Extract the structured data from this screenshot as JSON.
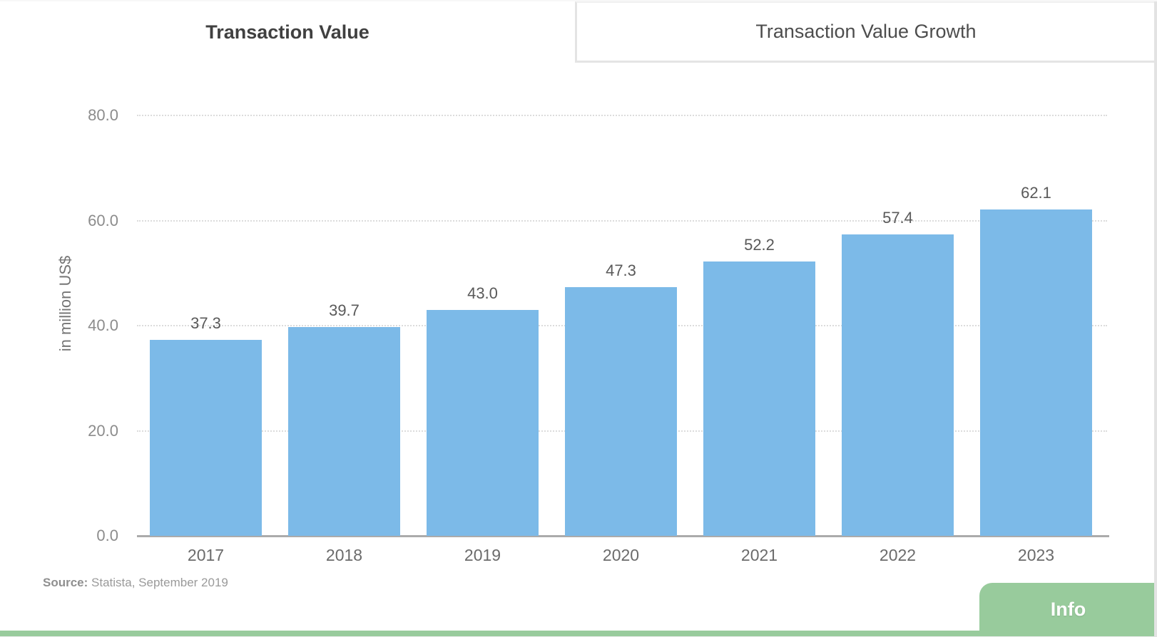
{
  "colors": {
    "bar": "#7cbae8",
    "green": "#98cb9c",
    "axis": "#ababab",
    "grid": "#dcdcdc",
    "tab_border": "#e4e4e4"
  },
  "tabs": [
    {
      "label": "Transaction Value",
      "active": true
    },
    {
      "label": "Transaction Value Growth",
      "active": false
    }
  ],
  "chart_data": {
    "type": "bar",
    "title": "Transaction Value",
    "categories": [
      "2017",
      "2018",
      "2019",
      "2020",
      "2021",
      "2022",
      "2023"
    ],
    "values": [
      37.3,
      39.7,
      43.0,
      47.3,
      52.2,
      57.4,
      62.1
    ],
    "value_labels": [
      "37.3",
      "39.7",
      "43.0",
      "47.3",
      "52.2",
      "57.4",
      "62.1"
    ],
    "xlabel": "",
    "ylabel": "in million US$",
    "ylim": [
      0,
      80
    ],
    "yticks": [
      0,
      20,
      40,
      60,
      80
    ],
    "ytick_labels": [
      "0.0",
      "20.0",
      "40.0",
      "60.0",
      "80.0"
    ],
    "grid": "horizontal-dotted",
    "legend": "none",
    "bar_color": "#7cbae8"
  },
  "source": {
    "prefix": "Source:",
    "text": "Statista, September 2019"
  },
  "info_button": {
    "label": "Info"
  }
}
